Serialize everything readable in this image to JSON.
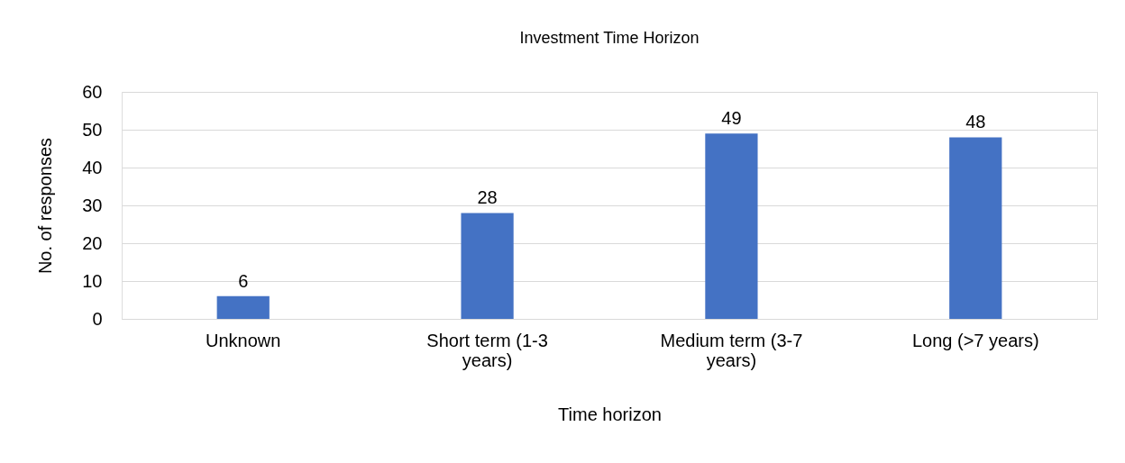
{
  "chart_data": {
    "type": "bar",
    "title": "Investment Time Horizon",
    "xlabel": "Time horizon",
    "ylabel": "No. of responses",
    "categories": [
      "Unknown",
      "Short term (1-3 years)",
      "Medium term (3-7 years)",
      "Long (>7 years)"
    ],
    "values": [
      6,
      28,
      49,
      48
    ],
    "color": "#4472c4",
    "ylim": [
      0,
      60
    ],
    "yticks": [
      0,
      10,
      20,
      30,
      40,
      50,
      60
    ],
    "grid": "y",
    "data_labels": true
  }
}
